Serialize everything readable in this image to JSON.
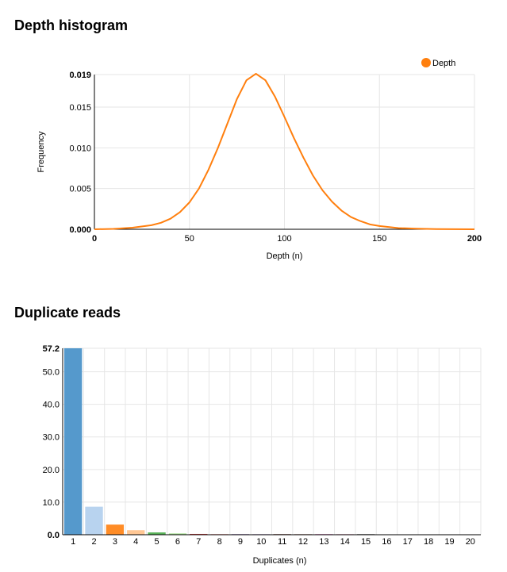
{
  "sections": {
    "depth_title": "Depth histogram",
    "dup_title": "Duplicate reads"
  },
  "chart_data": [
    {
      "type": "line",
      "title": "Depth histogram",
      "xlabel": "Depth (n)",
      "ylabel": "Frequency",
      "xlim": [
        0,
        200
      ],
      "ylim": [
        0,
        0.019
      ],
      "xticks": [
        "0",
        "50",
        "100",
        "150",
        "200"
      ],
      "yticks": [
        "0.000",
        "0.005",
        "0.010",
        "0.015",
        "0.019"
      ],
      "grid": true,
      "legend_position": "top-right",
      "series": [
        {
          "name": "Depth",
          "color": "#ff7f0e",
          "x": [
            0,
            10,
            20,
            30,
            35,
            40,
            45,
            50,
            55,
            60,
            65,
            70,
            75,
            80,
            85,
            90,
            95,
            100,
            105,
            110,
            115,
            120,
            125,
            130,
            135,
            140,
            145,
            150,
            160,
            170,
            180,
            190,
            200
          ],
          "y": [
            0.0,
            5e-05,
            0.0002,
            0.0005,
            0.0008,
            0.0013,
            0.0021,
            0.0033,
            0.005,
            0.0073,
            0.01,
            0.013,
            0.016,
            0.0183,
            0.0191,
            0.0183,
            0.0163,
            0.0138,
            0.0112,
            0.0088,
            0.0066,
            0.0048,
            0.0034,
            0.0023,
            0.0015,
            0.001,
            0.0006,
            0.0004,
            0.00015,
            7e-05,
            3e-05,
            1e-05,
            0.0
          ]
        }
      ]
    },
    {
      "type": "bar",
      "title": "Duplicate reads",
      "xlabel": "Duplicates (n)",
      "ylabel": "",
      "ylim": [
        0,
        57.2
      ],
      "yticks": [
        "0.0",
        "10.0",
        "20.0",
        "30.0",
        "40.0",
        "50.0",
        "57.2"
      ],
      "grid": true,
      "categories": [
        "1",
        "2",
        "3",
        "4",
        "5",
        "6",
        "7",
        "8",
        "9",
        "10",
        "11",
        "12",
        "13",
        "14",
        "15",
        "16",
        "17",
        "18",
        "19",
        "20"
      ],
      "values": [
        57.2,
        8.6,
        3.1,
        1.4,
        0.7,
        0.4,
        0.25,
        0.15,
        0.1,
        0.05,
        0.03,
        0.02,
        0.01,
        0.01,
        0.01,
        0,
        0,
        0,
        0,
        0
      ],
      "colors": [
        "#5599cc",
        "#b8d3ef",
        "#ff8c26",
        "#ffc794",
        "#58b358",
        "#a4de90",
        "#d93a3a",
        "#ff9d9a",
        "#a285c7",
        "#c9b4dc",
        "#8c564b",
        "#c49c94",
        "#e377c2",
        "#f7b6d2",
        "#7f7f7f",
        "#c7c7c7",
        "#bcbd22",
        "#dbdb8d",
        "#17becf",
        "#9edae5"
      ]
    }
  ]
}
